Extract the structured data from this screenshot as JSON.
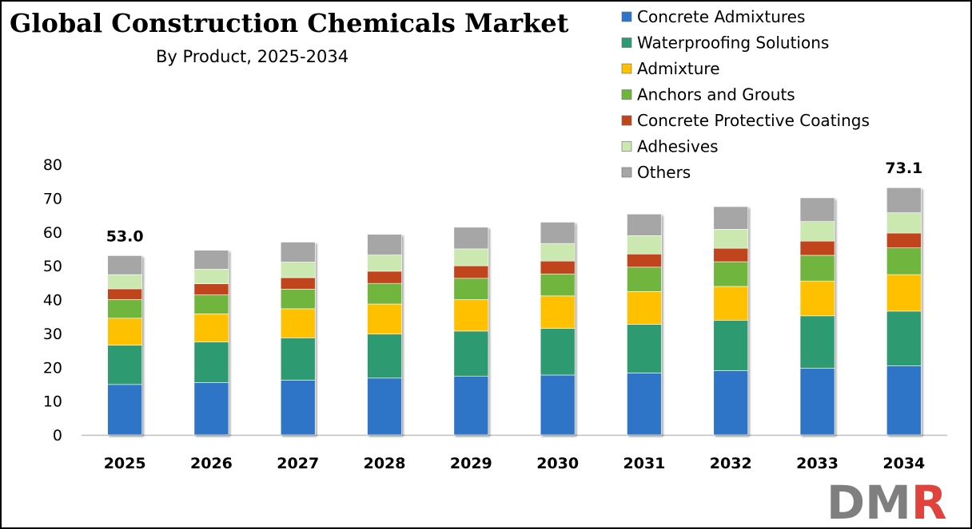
{
  "header": {
    "title": "Global Construction Chemicals Market",
    "subtitle": "By Product, 2025-2034"
  },
  "logo": {
    "text": "DMR"
  },
  "chart_data": {
    "type": "bar",
    "stacked": true,
    "title": "Global Construction Chemicals Market",
    "subtitle": "By Product, 2025-2034",
    "xlabel": "",
    "ylabel": "",
    "ylim": [
      0,
      80
    ],
    "yticks": [
      0,
      10,
      20,
      30,
      40,
      50,
      60,
      70,
      80
    ],
    "grid": false,
    "legend_position": "top-right",
    "categories": [
      "2025",
      "2026",
      "2027",
      "2028",
      "2029",
      "2030",
      "2031",
      "2032",
      "2033",
      "2034"
    ],
    "series": [
      {
        "name": "Concrete Admixtures",
        "color": "#2E75C8",
        "values": [
          14.9,
          15.5,
          16.2,
          16.8,
          17.3,
          17.7,
          18.3,
          19.0,
          19.7,
          20.4
        ]
      },
      {
        "name": "Waterproofing Solutions",
        "color": "#2E9A72",
        "values": [
          11.6,
          12.0,
          12.5,
          13.0,
          13.4,
          13.8,
          14.4,
          14.9,
          15.5,
          16.2
        ]
      },
      {
        "name": "Admixture",
        "color": "#FFC000",
        "values": [
          8.0,
          8.3,
          8.6,
          8.9,
          9.3,
          9.6,
          9.7,
          10.0,
          10.3,
          10.8
        ]
      },
      {
        "name": "Anchors and Grouts",
        "color": "#6FB53C",
        "values": [
          5.5,
          5.6,
          5.8,
          6.1,
          6.3,
          6.5,
          7.2,
          7.3,
          7.6,
          7.9
        ]
      },
      {
        "name": "Concrete Protective Coatings",
        "color": "#C0451C",
        "values": [
          3.2,
          3.3,
          3.4,
          3.6,
          3.7,
          3.8,
          3.9,
          4.0,
          4.2,
          4.4
        ]
      },
      {
        "name": "Adhesives",
        "color": "#CBE8B0",
        "values": [
          4.2,
          4.3,
          4.6,
          4.8,
          5.0,
          5.2,
          5.4,
          5.6,
          5.8,
          6.0
        ]
      },
      {
        "name": "Others",
        "color": "#A6A6A6",
        "values": [
          5.6,
          5.6,
          5.9,
          6.1,
          6.4,
          6.3,
          6.4,
          6.7,
          7.0,
          7.4
        ]
      }
    ],
    "annotations": [
      {
        "category": "2025",
        "text": "53.0"
      },
      {
        "category": "2034",
        "text": "73.1"
      }
    ]
  }
}
